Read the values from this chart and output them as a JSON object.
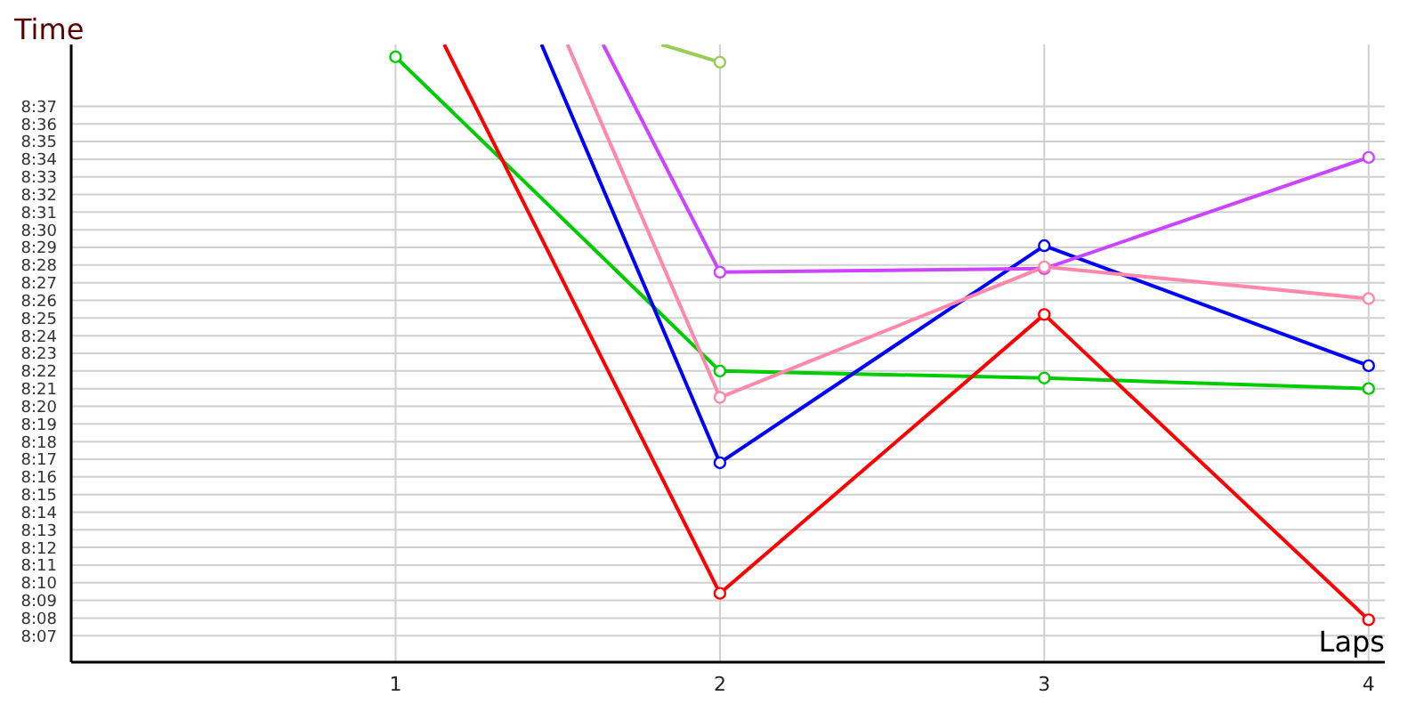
{
  "chart_data": {
    "type": "line",
    "xlabel": "Laps",
    "ylabel": "Time",
    "xlim": [
      0,
      4.05
    ],
    "xticks": [
      1,
      2,
      3,
      4
    ],
    "ylim": [
      485.5,
      520.5
    ],
    "yticks": [
      {
        "value": 487,
        "label": "8:07"
      },
      {
        "value": 488,
        "label": "8:08"
      },
      {
        "value": 489,
        "label": "8:09"
      },
      {
        "value": 490,
        "label": "8:10"
      },
      {
        "value": 491,
        "label": "8:11"
      },
      {
        "value": 492,
        "label": "8:12"
      },
      {
        "value": 493,
        "label": "8:13"
      },
      {
        "value": 494,
        "label": "8:14"
      },
      {
        "value": 495,
        "label": "8:15"
      },
      {
        "value": 496,
        "label": "8:16"
      },
      {
        "value": 497,
        "label": "8:17"
      },
      {
        "value": 498,
        "label": "8:18"
      },
      {
        "value": 499,
        "label": "8:19"
      },
      {
        "value": 500,
        "label": "8:20"
      },
      {
        "value": 501,
        "label": "8:21"
      },
      {
        "value": 502,
        "label": "8:22"
      },
      {
        "value": 503,
        "label": "8:23"
      },
      {
        "value": 504,
        "label": "8:24"
      },
      {
        "value": 505,
        "label": "8:25"
      },
      {
        "value": 506,
        "label": "8:26"
      },
      {
        "value": 507,
        "label": "8:27"
      },
      {
        "value": 508,
        "label": "8:28"
      },
      {
        "value": 509,
        "label": "8:29"
      },
      {
        "value": 510,
        "label": "8:30"
      },
      {
        "value": 511,
        "label": "8:31"
      },
      {
        "value": 512,
        "label": "8:32"
      },
      {
        "value": 513,
        "label": "8:33"
      },
      {
        "value": 514,
        "label": "8:34"
      },
      {
        "value": 515,
        "label": "8:35"
      },
      {
        "value": 516,
        "label": "8:36"
      },
      {
        "value": 517,
        "label": "8:37"
      }
    ],
    "grid": true,
    "marker": "circle",
    "line_style": "solid",
    "series": [
      {
        "color": "#00cc00",
        "x": [
          1,
          2,
          3,
          4
        ],
        "values": [
          519.8,
          502,
          501.6,
          501
        ]
      },
      {
        "color": "#ff0000",
        "x": [
          1.15,
          2,
          3,
          4
        ],
        "values": [
          520.5,
          489.4,
          505.2,
          487.9
        ]
      },
      {
        "color": "#0000ff",
        "x": [
          1.45,
          2,
          3,
          4
        ],
        "values": [
          520.5,
          496.8,
          509.1,
          502.3
        ]
      },
      {
        "color": "#cc44ff",
        "x": [
          1.64,
          2,
          3,
          4
        ],
        "values": [
          520.5,
          507.6,
          507.8,
          514.1
        ]
      },
      {
        "color": "#99cc55",
        "x": [
          1.82,
          2
        ],
        "values": [
          520.5,
          519.5
        ]
      },
      {
        "color": "#ff88aa",
        "x": [
          1.53,
          2,
          3,
          4
        ],
        "values": [
          520.5,
          500.5,
          507.9,
          506.1
        ]
      }
    ]
  }
}
